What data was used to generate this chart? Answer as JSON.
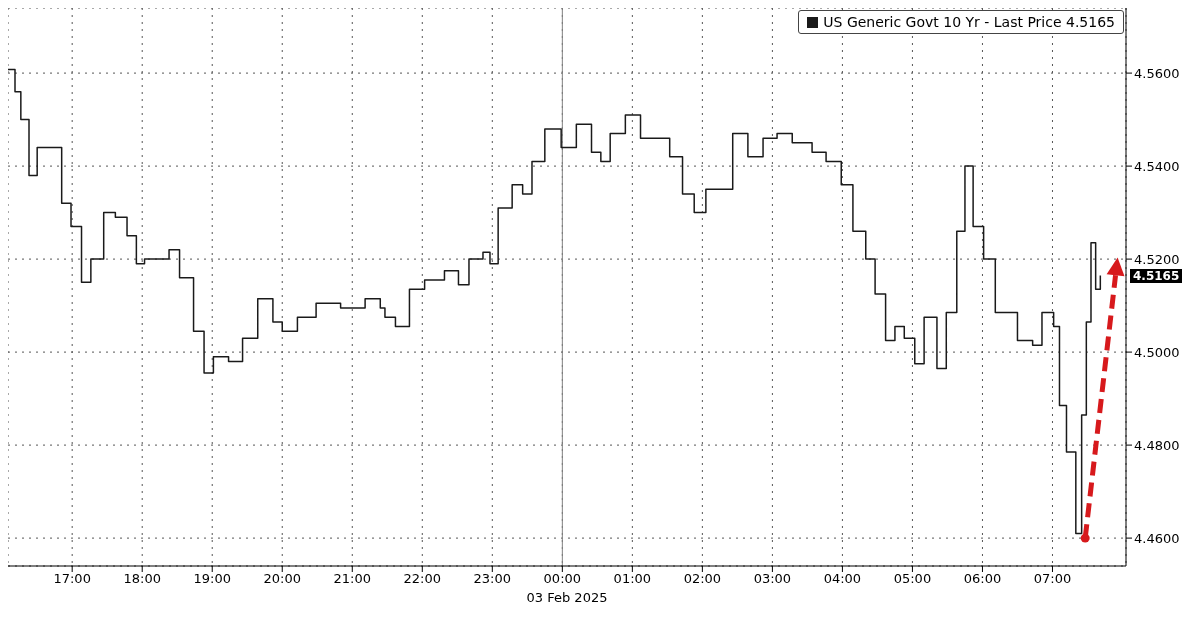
{
  "chart_data": {
    "type": "step",
    "xlabel": "03 Feb 2025",
    "x": [
      "2025-02-02T16:05",
      "2025-02-02T16:11",
      "2025-02-02T16:16",
      "2025-02-02T16:23",
      "2025-02-02T16:30",
      "2025-02-02T16:41",
      "2025-02-02T16:51",
      "2025-02-02T16:59",
      "2025-02-02T17:08",
      "2025-02-02T17:16",
      "2025-02-02T17:27",
      "2025-02-02T17:37",
      "2025-02-02T17:47",
      "2025-02-02T17:55",
      "2025-02-02T18:02",
      "2025-02-02T18:15",
      "2025-02-02T18:23",
      "2025-02-02T18:32",
      "2025-02-02T18:44",
      "2025-02-02T18:53",
      "2025-02-02T19:01",
      "2025-02-02T19:14",
      "2025-02-02T19:26",
      "2025-02-02T19:39",
      "2025-02-02T19:52",
      "2025-02-02T20:00",
      "2025-02-02T20:13",
      "2025-02-02T20:29",
      "2025-02-02T20:50",
      "2025-02-02T21:11",
      "2025-02-02T21:24",
      "2025-02-02T21:28",
      "2025-02-02T21:37",
      "2025-02-02T21:49",
      "2025-02-02T22:02",
      "2025-02-02T22:19",
      "2025-02-02T22:31",
      "2025-02-02T22:40",
      "2025-02-02T22:52",
      "2025-02-02T22:58",
      "2025-02-02T23:05",
      "2025-02-02T23:17",
      "2025-02-02T23:26",
      "2025-02-02T23:34",
      "2025-02-02T23:45",
      "2025-02-02T23:59",
      "2025-02-03T00:12",
      "2025-02-03T00:25",
      "2025-02-03T00:33",
      "2025-02-03T00:41",
      "2025-02-03T00:54",
      "2025-02-03T01:07",
      "2025-02-03T01:19",
      "2025-02-03T01:32",
      "2025-02-03T01:43",
      "2025-02-03T01:53",
      "2025-02-03T02:03",
      "2025-02-03T02:14",
      "2025-02-03T02:26",
      "2025-02-03T02:39",
      "2025-02-03T02:52",
      "2025-02-03T03:04",
      "2025-02-03T03:17",
      "2025-02-03T03:34",
      "2025-02-03T03:46",
      "2025-02-03T03:59",
      "2025-02-03T04:09",
      "2025-02-03T04:20",
      "2025-02-03T04:28",
      "2025-02-03T04:37",
      "2025-02-03T04:45",
      "2025-02-03T04:53",
      "2025-02-03T05:02",
      "2025-02-03T05:10",
      "2025-02-03T05:21",
      "2025-02-03T05:29",
      "2025-02-03T05:38",
      "2025-02-03T05:45",
      "2025-02-03T05:52",
      "2025-02-03T06:01",
      "2025-02-03T06:11",
      "2025-02-03T06:22",
      "2025-02-03T06:30",
      "2025-02-03T06:43",
      "2025-02-03T06:51",
      "2025-02-03T07:01",
      "2025-02-03T07:06",
      "2025-02-03T07:12",
      "2025-02-03T07:20",
      "2025-02-03T07:25",
      "2025-02-03T07:29",
      "2025-02-03T07:33",
      "2025-02-03T07:37",
      "2025-02-03T07:41"
    ],
    "series": [
      {
        "name": "US Generic Govt 10 Yr - Last Price 4.5165",
        "color": "#1a1a1a",
        "values": [
          4.5608,
          4.556,
          4.55,
          4.538,
          4.544,
          4.544,
          4.532,
          4.527,
          4.515,
          4.52,
          4.53,
          4.529,
          4.525,
          4.519,
          4.52,
          4.52,
          4.522,
          4.516,
          4.5045,
          4.4955,
          4.499,
          4.498,
          4.503,
          4.5115,
          4.5065,
          4.5045,
          4.5075,
          4.5105,
          4.5095,
          4.5115,
          4.5095,
          4.5075,
          4.5055,
          4.5135,
          4.5155,
          4.5175,
          4.5145,
          4.52,
          4.5215,
          4.519,
          4.531,
          4.536,
          4.534,
          4.541,
          4.548,
          4.544,
          4.549,
          4.543,
          4.541,
          4.547,
          4.551,
          4.546,
          4.546,
          4.542,
          4.534,
          4.53,
          4.535,
          4.535,
          4.547,
          4.542,
          4.546,
          4.547,
          4.545,
          4.543,
          4.541,
          4.536,
          4.526,
          4.52,
          4.5125,
          4.5025,
          4.5055,
          4.503,
          4.4975,
          4.5075,
          4.4965,
          4.5085,
          4.526,
          4.54,
          4.527,
          4.52,
          4.5085,
          4.5085,
          4.5025,
          4.5015,
          4.5085,
          4.5055,
          4.4885,
          4.4785,
          4.461,
          4.4865,
          4.5065,
          4.5235,
          4.5135,
          4.5165
        ]
      }
    ],
    "xlim": [
      "2025-02-02T16:05",
      "2025-02-03T08:03"
    ],
    "xticks": [
      {
        "value": "2025-02-02T17:00",
        "label": "17:00"
      },
      {
        "value": "2025-02-02T18:00",
        "label": "18:00"
      },
      {
        "value": "2025-02-02T19:00",
        "label": "19:00"
      },
      {
        "value": "2025-02-02T20:00",
        "label": "20:00"
      },
      {
        "value": "2025-02-02T21:00",
        "label": "21:00"
      },
      {
        "value": "2025-02-02T22:00",
        "label": "22:00"
      },
      {
        "value": "2025-02-02T23:00",
        "label": "23:00"
      },
      {
        "value": "2025-02-03T00:00",
        "label": "00:00"
      },
      {
        "value": "2025-02-03T01:00",
        "label": "01:00"
      },
      {
        "value": "2025-02-03T02:00",
        "label": "02:00"
      },
      {
        "value": "2025-02-03T03:00",
        "label": "03:00"
      },
      {
        "value": "2025-02-03T04:00",
        "label": "04:00"
      },
      {
        "value": "2025-02-03T05:00",
        "label": "05:00"
      },
      {
        "value": "2025-02-03T06:00",
        "label": "06:00"
      },
      {
        "value": "2025-02-03T07:00",
        "label": "07:00"
      }
    ],
    "ylim": [
      4.454,
      4.574
    ],
    "yticks": [
      {
        "value": 4.46,
        "label": "4.4600"
      },
      {
        "value": 4.48,
        "label": "4.4800"
      },
      {
        "value": 4.5,
        "label": "4.5000"
      },
      {
        "value": 4.52,
        "label": "4.5200"
      },
      {
        "value": 4.54,
        "label": "4.5400"
      },
      {
        "value": 4.56,
        "label": "4.5600"
      }
    ],
    "ref_lines": [
      {
        "axis": "x",
        "value": "2025-02-03T00:00",
        "color": "#808080",
        "line_style": "solid"
      }
    ],
    "annotations": [
      "4.5165"
    ],
    "grid": true,
    "line_style": "solid",
    "marker": "none",
    "legend": "top right"
  }
}
